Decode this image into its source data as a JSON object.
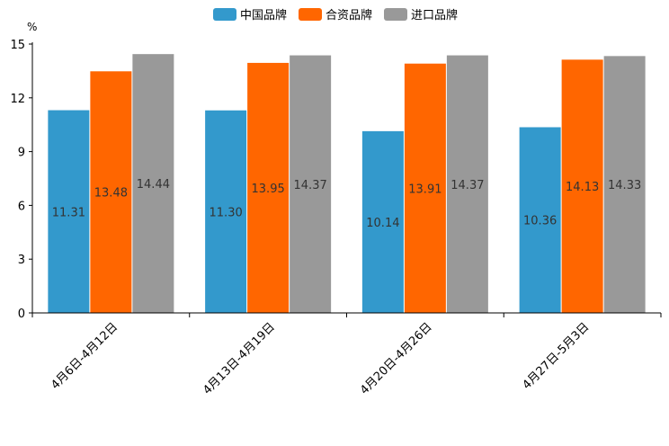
{
  "chart_data": {
    "type": "bar",
    "title": "",
    "xlabel": "",
    "ylabel": "",
    "unit": "%",
    "ylim": [
      0,
      15
    ],
    "yticks": [
      0,
      3,
      6,
      9,
      12,
      15
    ],
    "grid": false,
    "legend_position": "top-center",
    "categories": [
      "4月6日-4月12日",
      "4月13日-4月19日",
      "4月20日-4月26日",
      "4月27日-5月3日"
    ],
    "series": [
      {
        "name": "中国品牌",
        "color": "#3399CC",
        "values": [
          11.31,
          11.3,
          10.14,
          10.36
        ],
        "labels": [
          "11.31",
          "11.30",
          "10.14",
          "10.36"
        ]
      },
      {
        "name": "合资品牌",
        "color": "#FF6600",
        "values": [
          13.48,
          13.95,
          13.91,
          14.13
        ],
        "labels": [
          "13.48",
          "13.95",
          "13.91",
          "14.13"
        ]
      },
      {
        "name": "进口品牌",
        "color": "#999999",
        "values": [
          14.44,
          14.37,
          14.37,
          14.33
        ],
        "labels": [
          "14.44",
          "14.37",
          "14.37",
          "14.33"
        ]
      }
    ]
  }
}
